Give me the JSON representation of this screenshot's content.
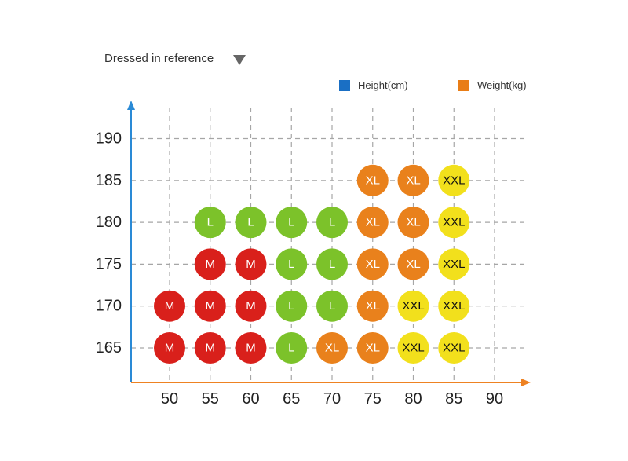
{
  "header": {
    "title": "Dressed in reference"
  },
  "legend": [
    {
      "label": "Height(cm)",
      "color": "#1a6fc4"
    },
    {
      "label": "Weight(kg)",
      "color": "#e97d16"
    }
  ],
  "colors": {
    "M": "#d9201b",
    "L": "#7cc22a",
    "XL": "#e9811c",
    "XXL": "#f2e01c",
    "y_axis": "#2a8ad6",
    "x_axis": "#ee8222",
    "grid": "#a6a6a6"
  },
  "chart_data": {
    "type": "scatter",
    "x_ticks": [
      50,
      55,
      60,
      65,
      70,
      75,
      80,
      85,
      90
    ],
    "y_ticks": [
      165,
      170,
      175,
      180,
      185,
      190
    ],
    "xlim": [
      45,
      95
    ],
    "ylim": [
      160.5,
      193
    ],
    "grid": true,
    "legend_position": "top-right",
    "points": [
      {
        "x": 50,
        "y": 165,
        "size": "M"
      },
      {
        "x": 55,
        "y": 165,
        "size": "M"
      },
      {
        "x": 60,
        "y": 165,
        "size": "M"
      },
      {
        "x": 65,
        "y": 165,
        "size": "L"
      },
      {
        "x": 70,
        "y": 165,
        "size": "XL"
      },
      {
        "x": 75,
        "y": 165,
        "size": "XL"
      },
      {
        "x": 80,
        "y": 165,
        "size": "XXL"
      },
      {
        "x": 85,
        "y": 165,
        "size": "XXL"
      },
      {
        "x": 50,
        "y": 170,
        "size": "M"
      },
      {
        "x": 55,
        "y": 170,
        "size": "M"
      },
      {
        "x": 60,
        "y": 170,
        "size": "M"
      },
      {
        "x": 65,
        "y": 170,
        "size": "L"
      },
      {
        "x": 70,
        "y": 170,
        "size": "L"
      },
      {
        "x": 75,
        "y": 170,
        "size": "XL"
      },
      {
        "x": 80,
        "y": 170,
        "size": "XXL"
      },
      {
        "x": 85,
        "y": 170,
        "size": "XXL"
      },
      {
        "x": 55,
        "y": 175,
        "size": "M"
      },
      {
        "x": 60,
        "y": 175,
        "size": "M"
      },
      {
        "x": 65,
        "y": 175,
        "size": "L"
      },
      {
        "x": 70,
        "y": 175,
        "size": "L"
      },
      {
        "x": 75,
        "y": 175,
        "size": "XL"
      },
      {
        "x": 80,
        "y": 175,
        "size": "XL"
      },
      {
        "x": 85,
        "y": 175,
        "size": "XXL"
      },
      {
        "x": 55,
        "y": 180,
        "size": "L"
      },
      {
        "x": 60,
        "y": 180,
        "size": "L"
      },
      {
        "x": 65,
        "y": 180,
        "size": "L"
      },
      {
        "x": 70,
        "y": 180,
        "size": "L"
      },
      {
        "x": 75,
        "y": 180,
        "size": "XL"
      },
      {
        "x": 80,
        "y": 180,
        "size": "XL"
      },
      {
        "x": 85,
        "y": 180,
        "size": "XXL"
      },
      {
        "x": 75,
        "y": 185,
        "size": "XL"
      },
      {
        "x": 80,
        "y": 185,
        "size": "XL"
      },
      {
        "x": 85,
        "y": 185,
        "size": "XXL"
      }
    ]
  }
}
